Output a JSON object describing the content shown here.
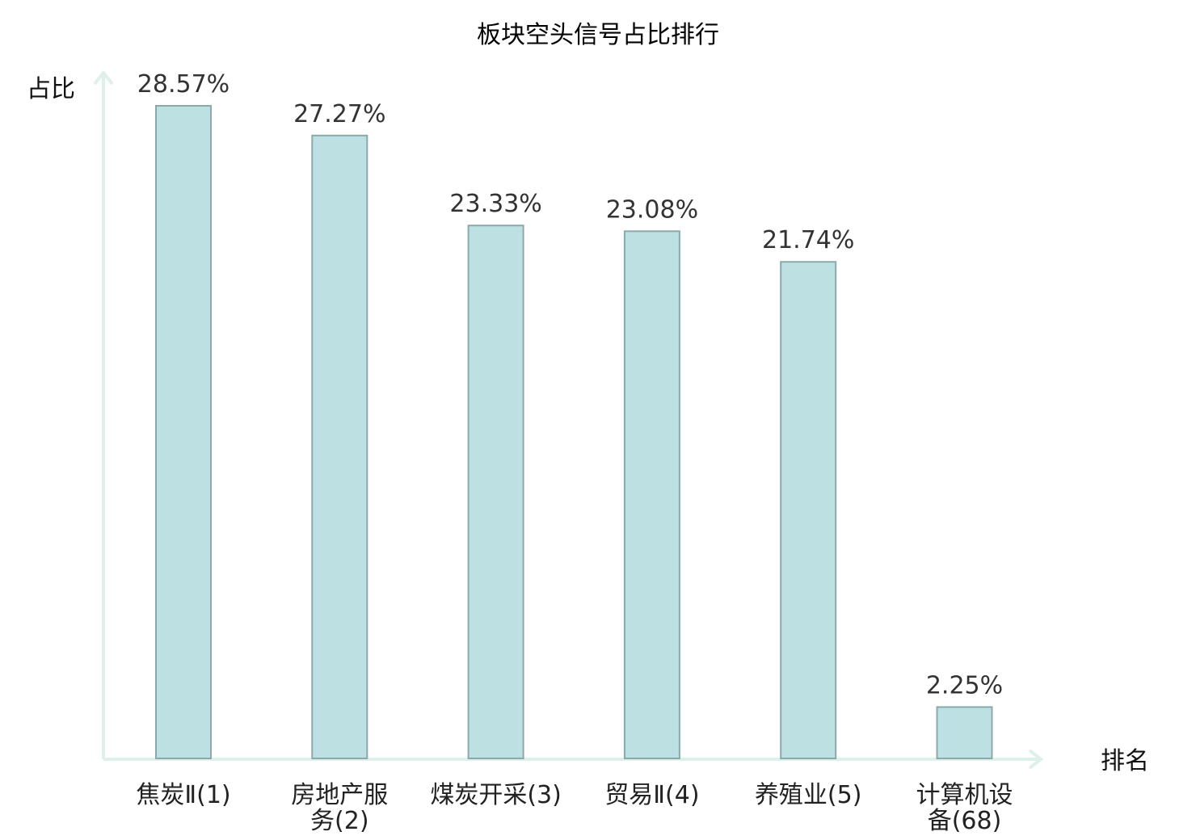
{
  "chart_data": {
    "type": "bar",
    "title": "板块空头信号占比排行",
    "ylabel": "占比",
    "xlabel": "排名",
    "ylim": [
      0,
      30
    ],
    "grid": false,
    "categories": [
      [
        "焦炭Ⅱ(1)"
      ],
      [
        "房地产服",
        "务(2)"
      ],
      [
        "煤炭开采(3)"
      ],
      [
        "贸易Ⅱ(4)"
      ],
      [
        "养殖业(5)"
      ],
      [
        "计算机设",
        "备(68)"
      ]
    ],
    "values": [
      28.57,
      27.27,
      23.33,
      23.08,
      21.74,
      2.25
    ],
    "value_labels": [
      "28.57%",
      "27.27%",
      "23.33%",
      "23.08%",
      "21.74%",
      "2.25%"
    ],
    "highlight_index": 5,
    "colors": {
      "bar_fill": "#bde0e2",
      "bar_stroke": "#8ba9ab",
      "axis": "#ddf0ec",
      "label": "#222222",
      "highlight": "#e8191b"
    }
  }
}
